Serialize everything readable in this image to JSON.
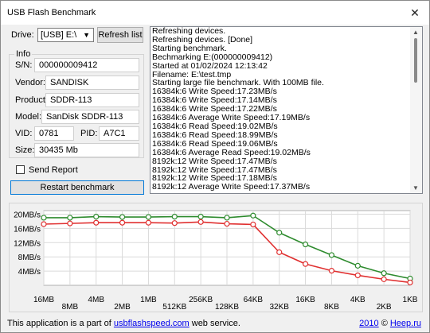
{
  "window": {
    "title": "USB Flash Benchmark",
    "close_glyph": "✕"
  },
  "drive": {
    "label": "Drive:",
    "selected": "[USB] E:\\",
    "refresh_label": "Refresh list"
  },
  "info": {
    "legend": "Info",
    "sn_label": "S/N:",
    "sn_value": "000000009412",
    "vendor_label": "Vendor:",
    "vendor_value": "SANDISK",
    "product_label": "Product:",
    "product_value": "SDDR-113",
    "model_label": "Model:",
    "model_value": "SanDisk SDDR-113",
    "vid_label": "VID:",
    "vid_value": "0781",
    "pid_label": "PID:",
    "pid_value": "A7C1",
    "size_label": "Size:",
    "size_value": "30435 Mb"
  },
  "send_report_label": "Send Report",
  "restart_label": "Restart benchmark",
  "log": [
    "Refreshing devices.",
    "Refreshing devices. [Done]",
    "Starting benchmark.",
    "Bechmarking E:(000000009412)",
    "Started at 01/02/2024 12:13:42",
    "Filename: E:\\test.tmp",
    "Starting large file benchmark. With 100MB file.",
    "16384k:6 Write Speed:17.23MB/s",
    "16384k:6 Write Speed:17.14MB/s",
    "16384k:6 Write Speed:17.22MB/s",
    "16384k:6 Average Write Speed:17.19MB/s",
    "16384k:6 Read Speed:19.02MB/s",
    "16384k:6 Read Speed:18.99MB/s",
    "16384k:6 Read Speed:19.06MB/s",
    "16384k:6 Average Read Speed:19.02MB/s",
    "8192k:12 Write Speed:17.47MB/s",
    "8192k:12 Write Speed:17.47MB/s",
    "8192k:12 Write Speed:17.18MB/s",
    "8192k:12 Average Write Speed:17.37MB/s"
  ],
  "chart_data": {
    "type": "line",
    "categories": [
      "16MB",
      "8MB",
      "4MB",
      "2MB",
      "1MB",
      "512KB",
      "256KB",
      "128KB",
      "64KB",
      "32KB",
      "16KB",
      "8KB",
      "4KB",
      "2KB",
      "1KB"
    ],
    "y_tick_labels": [
      "20MB/s",
      "16MB/s",
      "12MB/s",
      "8MB/s",
      "4MB/s"
    ],
    "y_ticks": [
      20,
      16,
      12,
      8,
      4
    ],
    "ylim": [
      0,
      21
    ],
    "grid": true,
    "series": [
      {
        "color": "#2e8b2e",
        "values": [
          19.0,
          19.0,
          19.3,
          19.2,
          19.2,
          19.3,
          19.3,
          19.0,
          19.6,
          14.8,
          11.5,
          8.5,
          5.5,
          3.4,
          1.9
        ]
      },
      {
        "color": "#e03030",
        "values": [
          17.2,
          17.4,
          17.6,
          17.6,
          17.6,
          17.5,
          17.8,
          17.3,
          17.1,
          9.3,
          6.0,
          4.1,
          2.8,
          1.7,
          0.8
        ]
      }
    ]
  },
  "status": {
    "prefix": "This application is a part of ",
    "link": "usbflashspeed.com",
    "suffix": " web service.",
    "year": "2010",
    "copyright": " © ",
    "author": "Heep.ru"
  }
}
